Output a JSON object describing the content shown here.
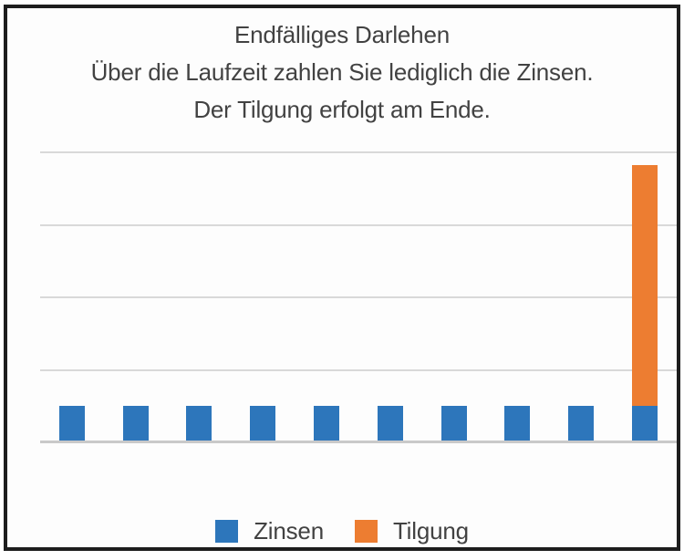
{
  "frame": {
    "border_color": "#1d1d1d",
    "background": "#fdfdfd"
  },
  "chart_data": {
    "type": "bar",
    "stacked": true,
    "title_lines": [
      "Endfälliges Darlehen",
      "Über die Laufzeit zahlen Sie lediglich die Zinsen.",
      "Der Tilgung erfolgt am Ende."
    ],
    "title_color": "#424242",
    "categories": [
      "",
      "",
      "",
      "",
      "",
      "",
      "",
      "",
      "",
      ""
    ],
    "series": [
      {
        "name": "Zinsen",
        "color": "#2d76bb",
        "values": [
          0.5,
          0.5,
          0.5,
          0.5,
          0.5,
          0.5,
          0.5,
          0.5,
          0.5,
          0.5
        ]
      },
      {
        "name": "Tilgung",
        "color": "#ed7d31",
        "values": [
          0,
          0,
          0,
          0,
          0,
          0,
          0,
          0,
          0,
          3.33
        ]
      }
    ],
    "xlabel": "",
    "ylabel": "",
    "ylim": [
      0,
      4
    ],
    "gridline_values": [
      0,
      1,
      2,
      3,
      4
    ],
    "grid_color": "#d9d9d9",
    "baseline_color": "#c9c9c9",
    "grid_on": true,
    "x_tick_labels_visible": false,
    "y_tick_labels_visible": false,
    "legend_position": "bottom",
    "legend_text_color": "#424242"
  }
}
